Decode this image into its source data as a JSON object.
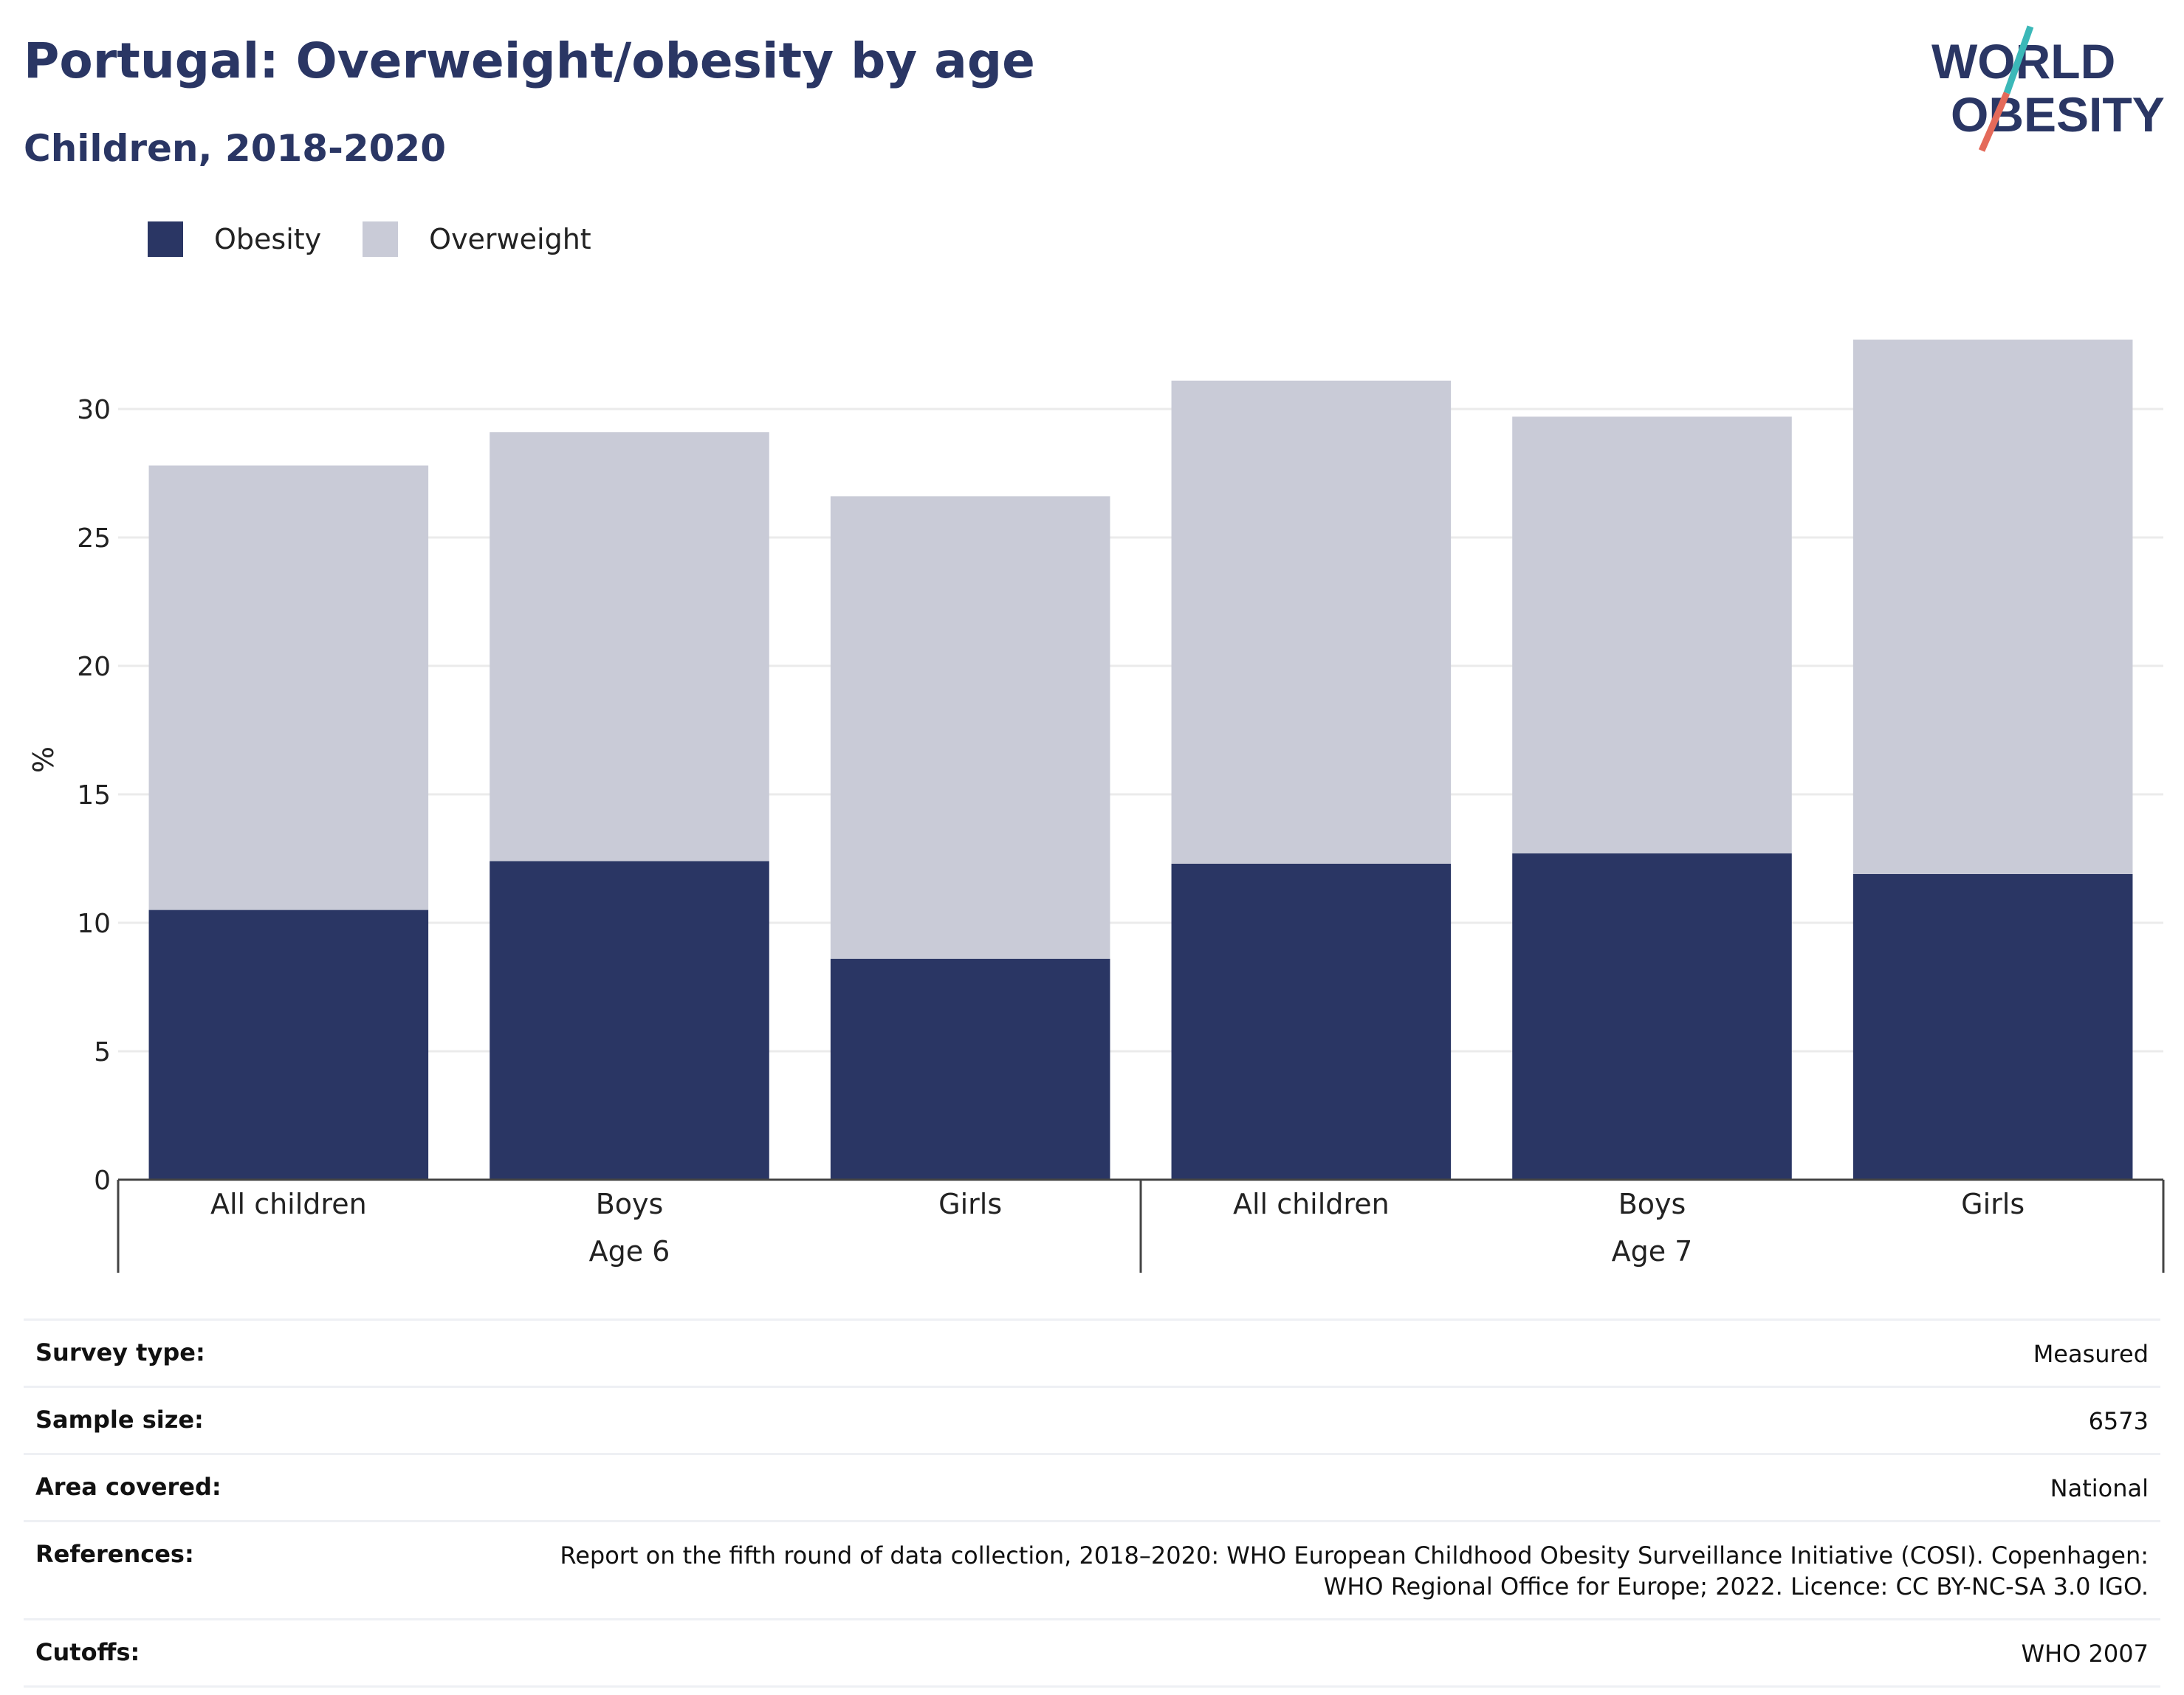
{
  "header": {
    "title": "Portugal: Overweight/obesity by age",
    "subtitle": "Children, 2018-2020"
  },
  "logo": {
    "line1": "WORLD",
    "line2": "OBESITY",
    "colors": {
      "text": "#2a3664",
      "slash_teal": "#3bb8b8",
      "slash_coral": "#e46a5a"
    }
  },
  "legend": {
    "items": [
      {
        "label": "Obesity",
        "color": "#2a3664"
      },
      {
        "label": "Overweight",
        "color": "#c9cbd7"
      }
    ]
  },
  "chart_data": {
    "type": "bar",
    "stacked": true,
    "ylabel": "%",
    "ylim": [
      0,
      32.7
    ],
    "yticks": [
      0,
      5,
      10,
      15,
      20,
      25,
      30
    ],
    "grid": true,
    "legend_placement": "top-left",
    "groups": [
      {
        "label": "Age 6",
        "categories": [
          "All children",
          "Boys",
          "Girls"
        ]
      },
      {
        "label": "Age 7",
        "categories": [
          "All children",
          "Boys",
          "Girls"
        ]
      }
    ],
    "categories": [
      "All children",
      "Boys",
      "Girls",
      "All children",
      "Boys",
      "Girls"
    ],
    "series": [
      {
        "name": "Obesity",
        "color": "#2a3664",
        "values": [
          10.5,
          12.4,
          8.6,
          12.3,
          12.7,
          11.9
        ]
      },
      {
        "name": "Overweight",
        "color": "#c9cbd7",
        "values": [
          17.3,
          16.7,
          18.0,
          18.8,
          17.0,
          20.8
        ]
      }
    ]
  },
  "info": {
    "rows": [
      {
        "key": "Survey type:",
        "value": "Measured"
      },
      {
        "key": "Sample size:",
        "value": "6573"
      },
      {
        "key": "Area covered:",
        "value": "National"
      },
      {
        "key": "References:",
        "value": "Report on the fifth round of data collection, 2018–2020: WHO European Childhood Obesity Surveillance Initiative (COSI). Copenhagen: WHO Regional Office for Europe; 2022. Licence: CC BY-NC-SA 3.0 IGO."
      },
      {
        "key": "Cutoffs:",
        "value": "WHO 2007"
      }
    ]
  }
}
